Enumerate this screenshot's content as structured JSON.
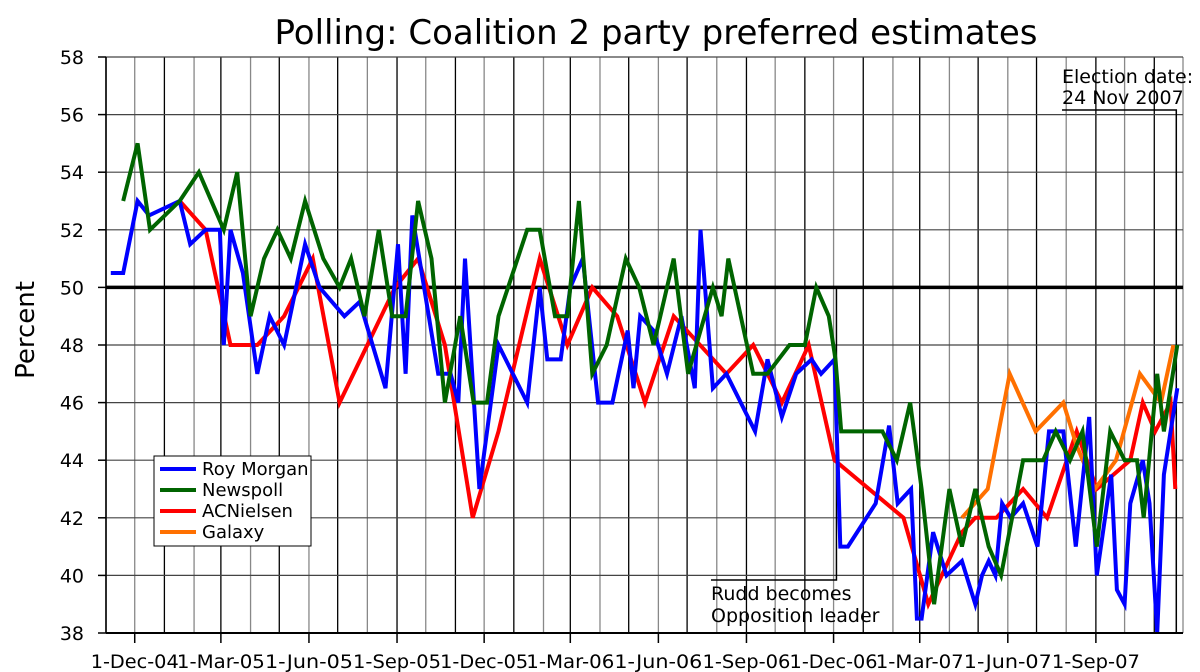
{
  "chart_data": {
    "type": "line",
    "title": "Polling: Coalition 2 party preferred estimates",
    "ylabel": "Percent",
    "xlabel": "",
    "ylim": [
      38,
      58
    ],
    "xlim": [
      "2004-11-01",
      "2007-12-01"
    ],
    "yticks": [
      "38",
      "40",
      "42",
      "44",
      "46",
      "48",
      "50",
      "52",
      "54",
      "56",
      "58"
    ],
    "xticks": [
      {
        "date": "2004-12-01",
        "label": "1-Dec-04"
      },
      {
        "date": "2005-03-01",
        "label": "1-Mar-05"
      },
      {
        "date": "2005-06-01",
        "label": "1-Jun-05"
      },
      {
        "date": "2005-09-01",
        "label": "1-Sep-05"
      },
      {
        "date": "2005-12-01",
        "label": "1-Dec-05"
      },
      {
        "date": "2006-03-01",
        "label": "1-Mar-06"
      },
      {
        "date": "2006-06-01",
        "label": "1-Jun-06"
      },
      {
        "date": "2006-09-01",
        "label": "1-Sep-06"
      },
      {
        "date": "2006-12-01",
        "label": "1-Dec-06"
      },
      {
        "date": "2007-03-01",
        "label": "1-Mar-07"
      },
      {
        "date": "2007-06-01",
        "label": "1-Jun-07"
      },
      {
        "date": "2007-09-01",
        "label": "1-Sep-07"
      }
    ],
    "grid": true,
    "reference_line": 50,
    "legend_position": "lower-left",
    "annotations": [
      {
        "date": "2006-12-04",
        "lines": [
          "Rudd becomes",
          "Opposition leader"
        ]
      },
      {
        "date": "2007-11-24",
        "lines": [
          "Election date:",
          "24 Nov 2007"
        ]
      }
    ],
    "series": [
      {
        "name": "Roy Morgan",
        "color": "#0000ff",
        "points": [
          [
            "2004-11-06",
            50.5
          ],
          [
            "2004-11-19",
            50.5
          ],
          [
            "2004-12-04",
            53
          ],
          [
            "2004-12-16",
            52.5
          ],
          [
            "2005-01-17",
            53
          ],
          [
            "2005-01-28",
            51.5
          ],
          [
            "2005-02-13",
            52
          ],
          [
            "2005-02-28",
            52
          ],
          [
            "2005-03-04",
            48
          ],
          [
            "2005-03-11",
            52
          ],
          [
            "2005-03-24",
            50.5
          ],
          [
            "2005-04-08",
            47
          ],
          [
            "2005-04-21",
            49
          ],
          [
            "2005-05-06",
            48
          ],
          [
            "2005-05-28",
            51.5
          ],
          [
            "2005-06-12",
            50
          ],
          [
            "2005-07-08",
            49
          ],
          [
            "2005-07-24",
            49.5
          ],
          [
            "2005-08-20",
            46.5
          ],
          [
            "2005-09-02",
            51.5
          ],
          [
            "2005-09-10",
            47
          ],
          [
            "2005-09-17",
            52.5
          ],
          [
            "2005-10-14",
            47
          ],
          [
            "2005-10-27",
            47
          ],
          [
            "2005-11-04",
            46
          ],
          [
            "2005-11-11",
            51
          ],
          [
            "2005-11-26",
            43
          ],
          [
            "2005-12-16",
            48
          ],
          [
            "2006-01-15",
            46
          ],
          [
            "2006-01-28",
            50
          ],
          [
            "2006-02-05",
            47.5
          ],
          [
            "2006-02-19",
            47.5
          ],
          [
            "2006-03-01",
            50
          ],
          [
            "2006-03-14",
            51
          ],
          [
            "2006-03-30",
            46
          ],
          [
            "2006-04-14",
            46
          ],
          [
            "2006-04-30",
            48.5
          ],
          [
            "2006-05-06",
            46.5
          ],
          [
            "2006-05-13",
            49
          ],
          [
            "2006-05-27",
            48.5
          ],
          [
            "2006-06-10",
            47
          ],
          [
            "2006-06-25",
            49
          ],
          [
            "2006-07-09",
            46.5
          ],
          [
            "2006-07-15",
            52
          ],
          [
            "2006-07-28",
            46.5
          ],
          [
            "2006-08-11",
            47
          ],
          [
            "2006-09-10",
            45
          ],
          [
            "2006-09-23",
            47.5
          ],
          [
            "2006-10-08",
            45.5
          ],
          [
            "2006-10-23",
            47
          ],
          [
            "2006-11-08",
            47.5
          ],
          [
            "2006-11-18",
            47
          ],
          [
            "2006-12-02",
            47.5
          ],
          [
            "2006-12-08",
            41
          ],
          [
            "2006-12-16",
            41
          ],
          [
            "2007-01-14",
            42.5
          ],
          [
            "2007-01-28",
            45.2
          ],
          [
            "2007-02-06",
            42.5
          ],
          [
            "2007-02-20",
            43
          ],
          [
            "2007-02-26",
            38.5
          ],
          [
            "2007-03-03",
            38.5
          ],
          [
            "2007-03-15",
            41.5
          ],
          [
            "2007-03-29",
            40
          ],
          [
            "2007-04-14",
            40.5
          ],
          [
            "2007-04-28",
            39
          ],
          [
            "2007-05-05",
            40
          ],
          [
            "2007-05-12",
            40.5
          ],
          [
            "2007-05-19",
            40
          ],
          [
            "2007-05-26",
            42.5
          ],
          [
            "2007-06-04",
            42
          ],
          [
            "2007-06-17",
            42.5
          ],
          [
            "2007-07-02",
            41
          ],
          [
            "2007-07-14",
            45
          ],
          [
            "2007-07-29",
            45
          ],
          [
            "2007-08-11",
            41
          ],
          [
            "2007-08-25",
            45.5
          ],
          [
            "2007-09-02",
            40
          ],
          [
            "2007-09-17",
            43.5
          ],
          [
            "2007-09-23",
            39.5
          ],
          [
            "2007-10-01",
            39
          ],
          [
            "2007-10-07",
            42.5
          ],
          [
            "2007-10-20",
            44
          ],
          [
            "2007-10-27",
            42.5
          ],
          [
            "2007-11-04",
            38
          ],
          [
            "2007-11-11",
            43.5
          ],
          [
            "2007-11-18",
            45
          ],
          [
            "2007-11-25",
            46.5
          ]
        ]
      },
      {
        "name": "Newspoll",
        "color": "#006400",
        "points": [
          [
            "2004-11-19",
            53
          ],
          [
            "2004-12-04",
            55
          ],
          [
            "2004-12-17",
            52
          ],
          [
            "2005-01-17",
            53
          ],
          [
            "2005-02-06",
            54
          ],
          [
            "2005-03-04",
            52
          ],
          [
            "2005-03-18",
            54
          ],
          [
            "2005-04-01",
            49
          ],
          [
            "2005-04-15",
            51
          ],
          [
            "2005-04-29",
            52
          ],
          [
            "2005-05-13",
            51
          ],
          [
            "2005-05-28",
            53
          ],
          [
            "2005-06-16",
            51
          ],
          [
            "2005-07-03",
            50
          ],
          [
            "2005-07-15",
            51
          ],
          [
            "2005-07-29",
            49
          ],
          [
            "2005-08-13",
            52
          ],
          [
            "2005-08-27",
            49
          ],
          [
            "2005-09-10",
            49
          ],
          [
            "2005-09-23",
            53
          ],
          [
            "2005-10-07",
            51
          ],
          [
            "2005-10-21",
            46
          ],
          [
            "2005-11-06",
            49
          ],
          [
            "2005-11-20",
            46
          ],
          [
            "2005-12-04",
            46
          ],
          [
            "2005-12-16",
            49
          ],
          [
            "2006-01-15",
            52
          ],
          [
            "2006-01-28",
            52
          ],
          [
            "2006-02-13",
            49
          ],
          [
            "2006-02-26",
            49
          ],
          [
            "2006-03-10",
            53
          ],
          [
            "2006-03-24",
            47
          ],
          [
            "2006-04-08",
            48
          ],
          [
            "2006-04-28",
            51
          ],
          [
            "2006-05-12",
            50
          ],
          [
            "2006-05-27",
            48
          ],
          [
            "2006-06-17",
            51
          ],
          [
            "2006-07-02",
            47
          ],
          [
            "2006-07-28",
            50
          ],
          [
            "2006-08-06",
            49
          ],
          [
            "2006-08-13",
            51
          ],
          [
            "2006-09-08",
            47
          ],
          [
            "2006-09-23",
            47
          ],
          [
            "2006-10-16",
            48
          ],
          [
            "2006-11-01",
            48
          ],
          [
            "2006-11-13",
            50
          ],
          [
            "2006-11-26",
            49
          ],
          [
            "2006-12-03",
            47.5
          ],
          [
            "2006-12-09",
            45
          ],
          [
            "2007-01-21",
            45
          ],
          [
            "2007-02-05",
            44
          ],
          [
            "2007-02-19",
            46
          ],
          [
            "2007-03-03",
            43
          ],
          [
            "2007-03-16",
            39
          ],
          [
            "2007-04-01",
            43
          ],
          [
            "2007-04-14",
            41
          ],
          [
            "2007-04-28",
            43
          ],
          [
            "2007-05-12",
            41
          ],
          [
            "2007-05-25",
            40
          ],
          [
            "2007-06-17",
            44
          ],
          [
            "2007-07-08",
            44
          ],
          [
            "2007-07-21",
            45
          ],
          [
            "2007-08-05",
            44
          ],
          [
            "2007-08-18",
            45
          ],
          [
            "2007-09-02",
            41
          ],
          [
            "2007-09-16",
            45
          ],
          [
            "2007-10-01",
            44
          ],
          [
            "2007-10-14",
            44
          ],
          [
            "2007-10-21",
            42
          ],
          [
            "2007-11-04",
            47
          ],
          [
            "2007-11-11",
            45
          ],
          [
            "2007-11-25",
            48
          ]
        ]
      },
      {
        "name": "ACNielsen",
        "color": "#ff0000",
        "points": [
          [
            "2005-01-17",
            53
          ],
          [
            "2005-02-13",
            52
          ],
          [
            "2005-03-11",
            48
          ],
          [
            "2005-04-08",
            48
          ],
          [
            "2005-05-06",
            49
          ],
          [
            "2005-06-05",
            51
          ],
          [
            "2005-07-03",
            46
          ],
          [
            "2005-08-30",
            50
          ],
          [
            "2005-09-23",
            51
          ],
          [
            "2005-10-21",
            48
          ],
          [
            "2005-11-19",
            42
          ],
          [
            "2005-12-16",
            45
          ],
          [
            "2006-01-28",
            51
          ],
          [
            "2006-02-26",
            48
          ],
          [
            "2006-03-24",
            50
          ],
          [
            "2006-04-19",
            49
          ],
          [
            "2006-05-18",
            46
          ],
          [
            "2006-06-17",
            49
          ],
          [
            "2006-08-11",
            47
          ],
          [
            "2006-09-08",
            48
          ],
          [
            "2006-10-08",
            46
          ],
          [
            "2006-11-05",
            48
          ],
          [
            "2006-12-02",
            44
          ],
          [
            "2007-02-12",
            42
          ],
          [
            "2007-03-10",
            39
          ],
          [
            "2007-04-14",
            41.5
          ],
          [
            "2007-04-28",
            42
          ],
          [
            "2007-05-20",
            42
          ],
          [
            "2007-06-17",
            43
          ],
          [
            "2007-07-12",
            42
          ],
          [
            "2007-08-12",
            45
          ],
          [
            "2007-09-02",
            43
          ],
          [
            "2007-10-07",
            44
          ],
          [
            "2007-10-20",
            46
          ],
          [
            "2007-11-02",
            45
          ],
          [
            "2007-11-18",
            46
          ],
          [
            "2007-11-23",
            43
          ]
        ]
      },
      {
        "name": "Galaxy",
        "color": "#ff7000",
        "points": [
          [
            "2007-04-14",
            42
          ],
          [
            "2007-05-11",
            43
          ],
          [
            "2007-06-03",
            47
          ],
          [
            "2007-06-30",
            45
          ],
          [
            "2007-07-29",
            46
          ],
          [
            "2007-08-12",
            44.5
          ],
          [
            "2007-08-31",
            43
          ],
          [
            "2007-09-22",
            44
          ],
          [
            "2007-10-17",
            47
          ],
          [
            "2007-11-08",
            46
          ],
          [
            "2007-11-21",
            48
          ]
        ]
      }
    ]
  }
}
